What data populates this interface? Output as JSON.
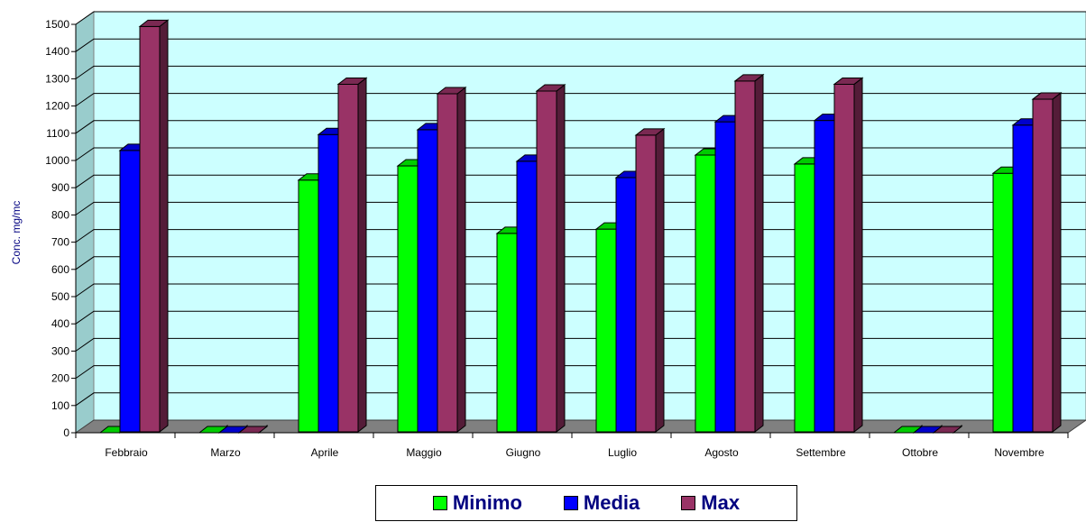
{
  "chart_data": {
    "type": "bar",
    "ylabel": "Conc. mg/mc",
    "ylim": [
      0,
      1500
    ],
    "yticks": [
      0,
      100,
      200,
      300,
      400,
      500,
      600,
      700,
      800,
      900,
      1000,
      1100,
      1200,
      1300,
      1400,
      1500
    ],
    "categories": [
      "Febbraio",
      "Marzo",
      "Aprile",
      "Maggio",
      "Giugno",
      "Luglio",
      "Agosto",
      "Settembre",
      "Ottobre",
      "Novembre"
    ],
    "series": [
      {
        "name": "Minimo",
        "color": "#00ff00",
        "values": [
          0,
          0,
          928,
          980,
          732,
          748,
          1020,
          987,
          0,
          953
        ]
      },
      {
        "name": "Media",
        "color": "#0000ff",
        "values": [
          1037,
          0,
          1095,
          1113,
          997,
          937,
          1142,
          1147,
          0,
          1130
        ]
      },
      {
        "name": "Max",
        "color": "#993366",
        "values": [
          1492,
          0,
          1280,
          1245,
          1255,
          1093,
          1292,
          1280,
          0,
          1225
        ]
      }
    ],
    "grid": true,
    "legend_position": "bottom"
  }
}
